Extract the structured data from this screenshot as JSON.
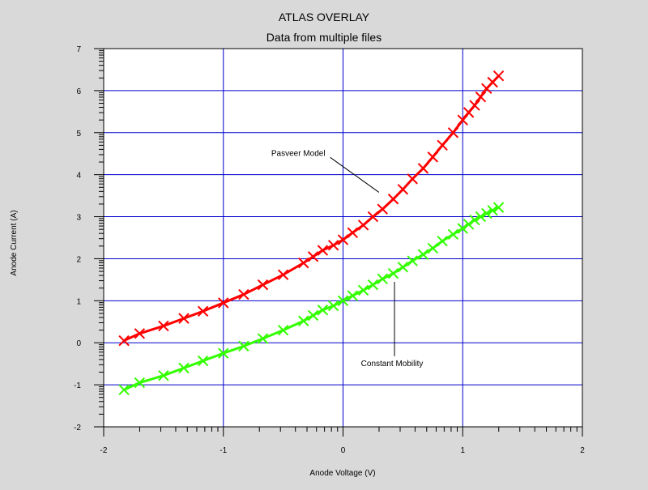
{
  "chart_data": {
    "type": "line",
    "title": "ATLAS OVERLAY",
    "subtitle": "Data from multiple files",
    "xlabel": "Anode Voltage (V)",
    "ylabel": "Anode Current (A)",
    "xlim": [
      -2,
      2
    ],
    "ylim": [
      -2,
      7
    ],
    "x_ticks": [
      -2,
      -1,
      0,
      1,
      2
    ],
    "y_ticks": [
      -2,
      -1,
      0,
      1,
      2,
      3,
      4,
      5,
      6,
      7
    ],
    "grid": true,
    "background": "#d9d9d9",
    "plot_background": "#ffffff",
    "grid_color": "#0000cc",
    "series": [
      {
        "color": "#ff0000",
        "marker": "x",
        "x": [
          -1.83,
          -1.7,
          -1.5,
          -1.33,
          -1.17,
          -1.0,
          -0.83,
          -0.67,
          -0.5,
          -0.33,
          -0.25,
          -0.17,
          -0.08,
          0.0,
          0.08,
          0.17,
          0.25,
          0.33,
          0.42,
          0.5,
          0.58,
          0.67,
          0.75,
          0.83,
          0.92,
          1.0,
          1.05,
          1.1,
          1.15,
          1.2,
          1.25,
          1.3
        ],
        "y": [
          0.05,
          0.22,
          0.4,
          0.58,
          0.75,
          0.95,
          1.15,
          1.38,
          1.62,
          1.9,
          2.05,
          2.2,
          2.32,
          2.45,
          2.62,
          2.8,
          3.0,
          3.18,
          3.42,
          3.65,
          3.9,
          4.15,
          4.42,
          4.7,
          5.0,
          5.3,
          5.48,
          5.65,
          5.85,
          6.05,
          6.2,
          6.35
        ]
      },
      {
        "color": "#33ff00",
        "marker": "x",
        "x": [
          -1.83,
          -1.7,
          -1.5,
          -1.33,
          -1.17,
          -1.0,
          -0.83,
          -0.67,
          -0.5,
          -0.33,
          -0.25,
          -0.17,
          -0.08,
          0.0,
          0.08,
          0.17,
          0.25,
          0.33,
          0.42,
          0.5,
          0.58,
          0.67,
          0.75,
          0.83,
          0.92,
          1.0,
          1.05,
          1.1,
          1.15,
          1.2,
          1.25,
          1.3
        ],
        "y": [
          -1.12,
          -0.95,
          -0.78,
          -0.6,
          -0.43,
          -0.25,
          -0.08,
          0.1,
          0.3,
          0.52,
          0.65,
          0.78,
          0.88,
          1.0,
          1.12,
          1.25,
          1.38,
          1.52,
          1.65,
          1.8,
          1.95,
          2.1,
          2.25,
          2.42,
          2.58,
          2.72,
          2.82,
          2.92,
          3.0,
          3.08,
          3.15,
          3.22
        ]
      }
    ],
    "annotations": [
      {
        "text": "Pasveer Model",
        "x": -0.6,
        "y": 4.45,
        "arrow_to": [
          0.3,
          3.58
        ]
      },
      {
        "text": "Constant Mobility",
        "x": 0.15,
        "y": -0.55,
        "arrow_to": [
          0.43,
          1.45
        ]
      }
    ]
  }
}
